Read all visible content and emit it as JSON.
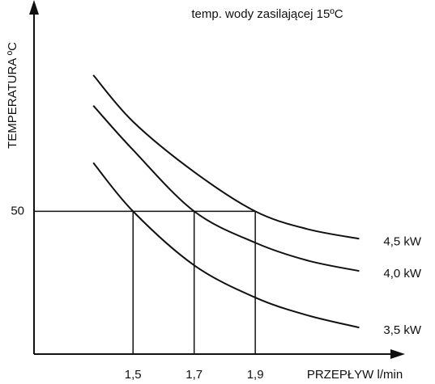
{
  "chart_data": {
    "type": "line",
    "title": "temp. wody zasilającej 15ºC",
    "ylabel": "TEMPERATURA ºC",
    "xlabel": "PRZEPŁYW  l/min",
    "x": [
      1.37,
      1.5,
      1.7,
      1.9,
      2.07,
      2.24
    ],
    "series": [
      {
        "name": "4,5 kW",
        "color": "#111111",
        "values": [
          97.7,
          81.4,
          63.8,
          50,
          43.8,
          40.4
        ]
      },
      {
        "name": "4,0 kW",
        "color": "#111111",
        "values": [
          87,
          71.5,
          50,
          39,
          32.8,
          29.1
        ]
      },
      {
        "name": "3,5 kW",
        "color": "#111111",
        "values": [
          67,
          50,
          31.1,
          19.8,
          13.6,
          9.3
        ]
      }
    ],
    "xlim": [
      1.176,
      2.39
    ],
    "ylim": [
      0,
      124
    ],
    "xticks": [
      {
        "value": 1.5,
        "label": "1,5"
      },
      {
        "value": 1.7,
        "label": "1,7"
      },
      {
        "value": 1.9,
        "label": "1,9"
      }
    ],
    "yticks": [
      50
    ]
  }
}
